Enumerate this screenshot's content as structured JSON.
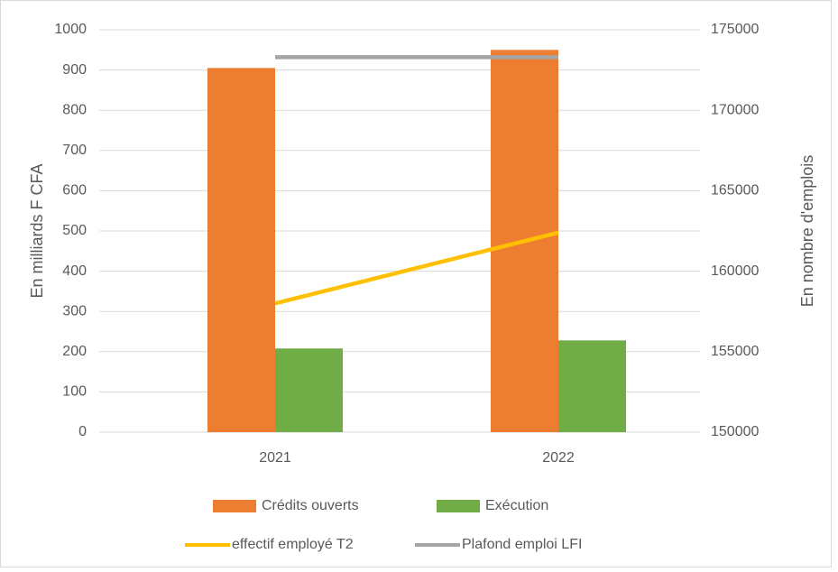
{
  "chart_data": {
    "type": "bar",
    "categories": [
      "2021",
      "2022"
    ],
    "series": [
      {
        "name": "Crédits ouverts",
        "color": "#ed7d31",
        "type": "bar",
        "values": [
          905,
          950
        ]
      },
      {
        "name": "Exécution",
        "color": "#70ad47",
        "type": "bar",
        "values": [
          208,
          228
        ]
      },
      {
        "name": "effectif employé T2",
        "color": "#ffc000",
        "type": "line",
        "axis": "y2",
        "values": [
          158000,
          162400
        ]
      },
      {
        "name": "Plafond emploi LFI",
        "color": "#a5a5a5",
        "type": "line",
        "axis": "y2",
        "values": [
          173300,
          173300
        ]
      }
    ],
    "ylabel": "En milliards F CFA",
    "y2label": "En nombre d'emplois",
    "ylim": [
      0,
      1000
    ],
    "yticks": [
      0,
      100,
      200,
      300,
      400,
      500,
      600,
      700,
      800,
      900,
      1000
    ],
    "y2lim": [
      150000,
      175000
    ],
    "y2ticks": [
      150000,
      155000,
      160000,
      165000,
      170000,
      175000
    ],
    "grid": true,
    "legend": "bottom"
  }
}
